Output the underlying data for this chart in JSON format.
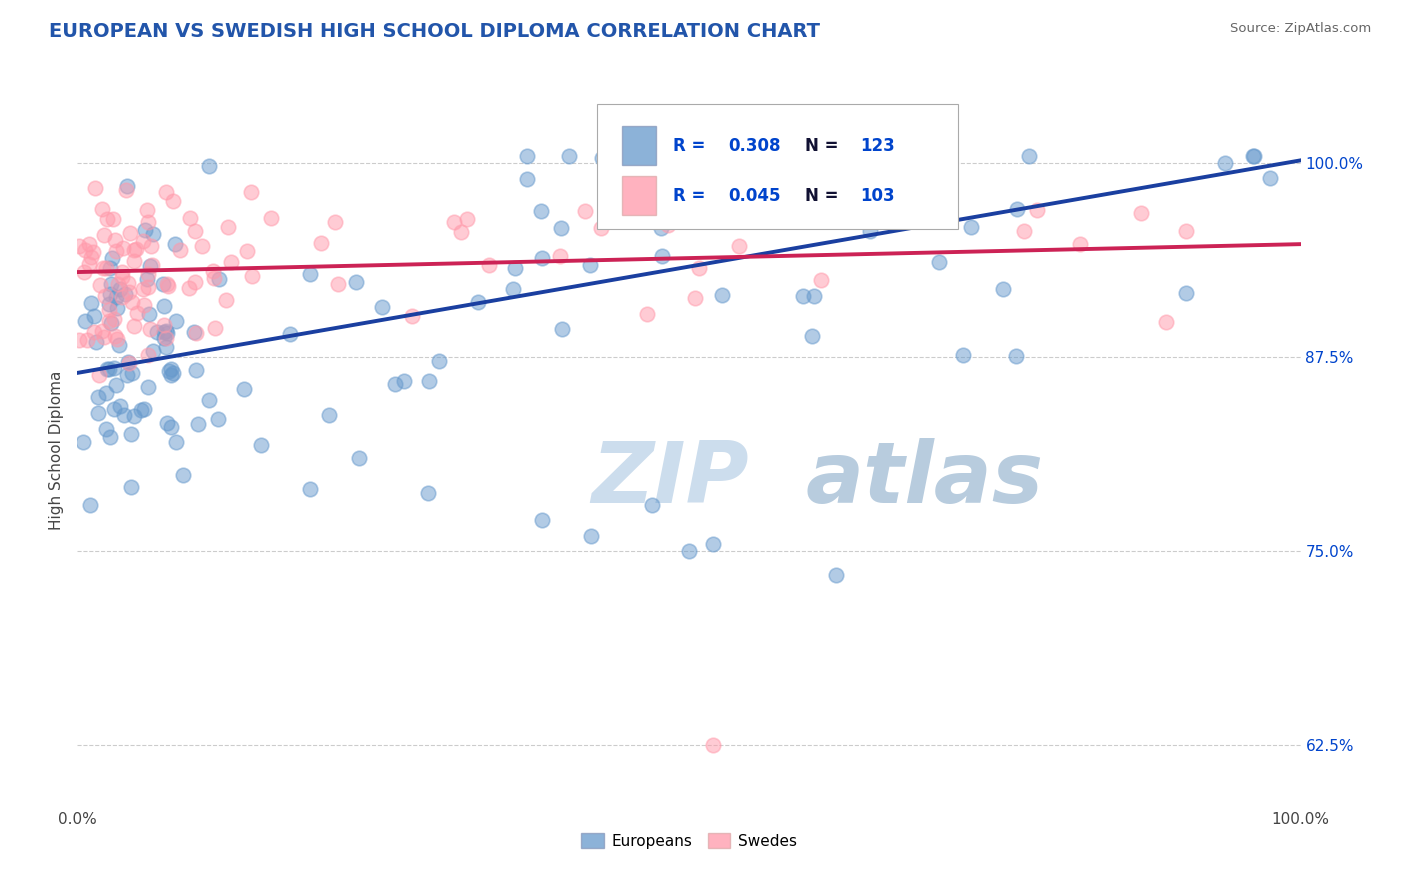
{
  "title": "EUROPEAN VS SWEDISH HIGH SCHOOL DIPLOMA CORRELATION CHART",
  "source": "Source: ZipAtlas.com",
  "ylabel": "High School Diploma",
  "y_tick_labels": [
    "62.5%",
    "75.0%",
    "87.5%",
    "100.0%"
  ],
  "y_tick_values": [
    0.625,
    0.75,
    0.875,
    1.0
  ],
  "xlim": [
    0.0,
    1.0
  ],
  "ylim": [
    0.585,
    1.045
  ],
  "blue_R": 0.308,
  "blue_N": 123,
  "pink_R": 0.045,
  "pink_N": 103,
  "blue_color": "#6699CC",
  "pink_color": "#FF99AA",
  "blue_line_color": "#1a3fa0",
  "pink_line_color": "#cc2255",
  "title_color": "#2255aa",
  "watermark_color": "#ccdded",
  "legend_R_color": "#0044cc",
  "grid_color": "#cccccc",
  "background_color": "#ffffff",
  "fig_background": "#ffffff",
  "blue_trend_start": 0.865,
  "blue_trend_end": 1.002,
  "pink_trend_start": 0.93,
  "pink_trend_end": 0.948
}
